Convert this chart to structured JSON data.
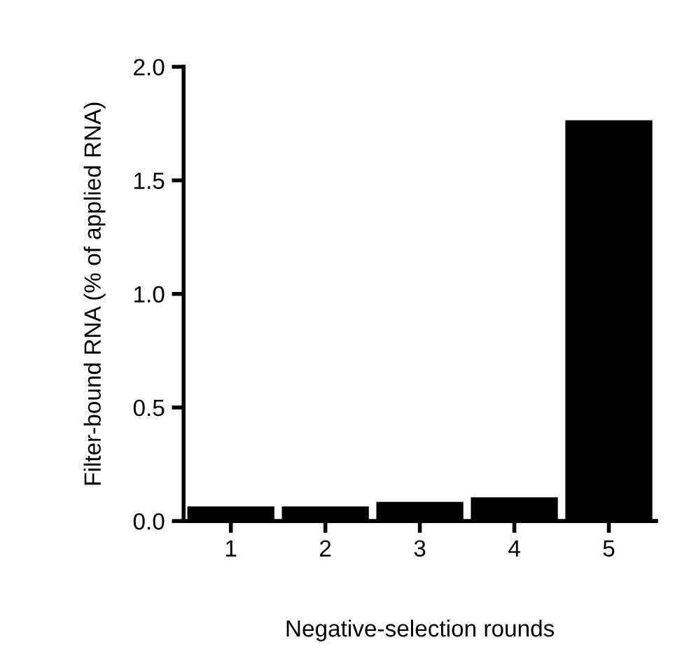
{
  "chart_data": {
    "type": "bar",
    "xlabel": "Negative-selection rounds",
    "ylabel": "Filter-bound RNA (% of applied RNA)",
    "categories": [
      "1",
      "2",
      "3",
      "4",
      "5"
    ],
    "values": [
      0.06,
      0.06,
      0.08,
      0.1,
      1.76
    ],
    "color": "#000000",
    "ylim": [
      0,
      2.0
    ],
    "yticks": [
      {
        "value": 0,
        "label": "0.0"
      },
      {
        "value": 0.5,
        "label": "0.5"
      },
      {
        "value": 1.0,
        "label": "1.0"
      },
      {
        "value": 1.5,
        "label": "1.5"
      },
      {
        "value": 2.0,
        "label": "2.0"
      }
    ],
    "grid": false
  }
}
